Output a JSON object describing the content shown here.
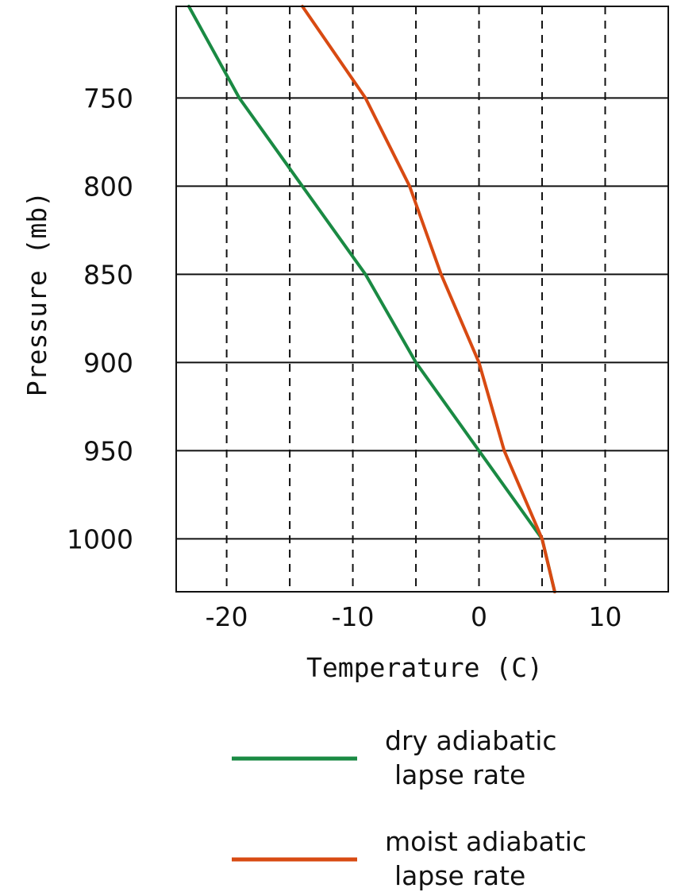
{
  "chart_data": {
    "type": "line",
    "title": "",
    "xlabel": "Temperature (C)",
    "ylabel": "Pressure (mb)",
    "xlim": [
      -24,
      15
    ],
    "ylim": [
      1030,
      698
    ],
    "xticks": [
      -20,
      -10,
      0,
      10
    ],
    "xtick_labels": [
      "-20",
      "-10",
      "0",
      "10"
    ],
    "yticks": [
      750,
      800,
      850,
      900,
      950,
      1000
    ],
    "ytick_labels": [
      "750",
      "800",
      "850",
      "900",
      "950",
      "1000"
    ],
    "grid": {
      "vertical_dashed_x": [
        -20,
        -15,
        -10,
        -5,
        0,
        5,
        10
      ],
      "horizontal_solid_y": [
        750,
        800,
        850,
        900,
        950,
        1000
      ]
    },
    "legend_position": "bottom",
    "series": [
      {
        "name": "dry adiabatic lapse rate",
        "legend_lines": [
          "dry adiabatic",
          "lapse rate"
        ],
        "color": "#1a8a43",
        "points": [
          {
            "x": 6.0,
            "y": 1030
          },
          {
            "x": 5.0,
            "y": 1000
          },
          {
            "x": 0.0,
            "y": 950
          },
          {
            "x": -5.0,
            "y": 900
          },
          {
            "x": -9.0,
            "y": 850
          },
          {
            "x": -14.0,
            "y": 800
          },
          {
            "x": -19.0,
            "y": 750
          },
          {
            "x": -23.0,
            "y": 698
          }
        ]
      },
      {
        "name": "moist adiabatic lapse rate",
        "legend_lines": [
          "moist adiabatic",
          "lapse rate"
        ],
        "color": "#d84a12",
        "points": [
          {
            "x": 6.0,
            "y": 1030
          },
          {
            "x": 5.0,
            "y": 1000
          },
          {
            "x": 2.0,
            "y": 950
          },
          {
            "x": 0.0,
            "y": 900
          },
          {
            "x": -3.0,
            "y": 850
          },
          {
            "x": -5.5,
            "y": 800
          },
          {
            "x": -9.0,
            "y": 750
          },
          {
            "x": -14.0,
            "y": 698
          }
        ]
      }
    ]
  }
}
